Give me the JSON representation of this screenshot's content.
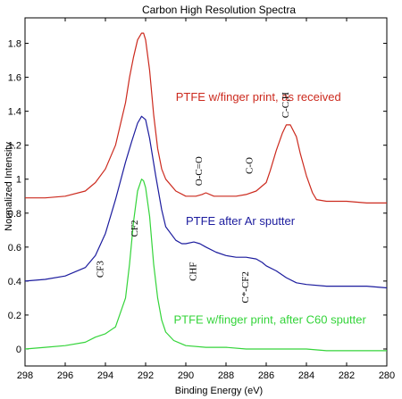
{
  "chart_data": {
    "type": "line",
    "title": "Carbon High Resolution Spectra",
    "xlabel": "Binding Energy (eV)",
    "ylabel": "Normalized Intensity",
    "xlim": [
      298,
      280
    ],
    "ylim": [
      -0.1,
      1.95
    ],
    "x_ticks": [
      298,
      296,
      294,
      292,
      290,
      288,
      286,
      284,
      282,
      280
    ],
    "y_ticks": [
      0,
      0.2,
      0.4,
      0.6,
      0.8,
      1,
      1.2,
      1.4,
      1.6,
      1.8
    ],
    "x_tick_labels": [
      "298",
      "296",
      "294",
      "292",
      "290",
      "288",
      "286",
      "284",
      "282",
      "280"
    ],
    "y_tick_labels": [
      "0",
      "0.2",
      "0.4",
      "0.6",
      "0.8",
      "1",
      "1.2",
      "1.4",
      "1.6",
      "1.8"
    ],
    "grid": false,
    "series": [
      {
        "name": "PTFE w/finger print, as received",
        "color": "#cc2a1e",
        "x": [
          298,
          297,
          296,
          295,
          294.5,
          294,
          293.5,
          293,
          292.8,
          292.6,
          292.4,
          292.2,
          292.1,
          292.0,
          291.8,
          291.6,
          291.4,
          291.2,
          291,
          290.5,
          290,
          289.5,
          289.2,
          289,
          288.6,
          288,
          287.5,
          287,
          286.5,
          286,
          285.8,
          285.5,
          285.2,
          285.0,
          284.8,
          284.5,
          284.3,
          284,
          283.7,
          283.5,
          283,
          282,
          281,
          280
        ],
        "y": [
          0.89,
          0.89,
          0.9,
          0.93,
          0.98,
          1.06,
          1.2,
          1.45,
          1.6,
          1.72,
          1.82,
          1.86,
          1.86,
          1.82,
          1.64,
          1.38,
          1.18,
          1.06,
          1.0,
          0.93,
          0.9,
          0.9,
          0.91,
          0.92,
          0.9,
          0.9,
          0.9,
          0.91,
          0.93,
          0.98,
          1.05,
          1.17,
          1.27,
          1.32,
          1.32,
          1.25,
          1.15,
          1.02,
          0.92,
          0.88,
          0.87,
          0.87,
          0.86,
          0.86
        ]
      },
      {
        "name": "PTFE after Ar sputter",
        "color": "#1c1c9e",
        "x": [
          298,
          297,
          296,
          295,
          294.5,
          294,
          293.5,
          293,
          292.7,
          292.4,
          292.2,
          292.0,
          291.8,
          291.5,
          291.2,
          291,
          290.5,
          290.2,
          290,
          289.6,
          289.3,
          289,
          288.5,
          288,
          287.5,
          287,
          286.5,
          286.2,
          286,
          285.5,
          285,
          284.5,
          284,
          283,
          282,
          281,
          280
        ],
        "y": [
          0.4,
          0.41,
          0.43,
          0.48,
          0.55,
          0.68,
          0.88,
          1.1,
          1.22,
          1.33,
          1.37,
          1.35,
          1.24,
          1.02,
          0.82,
          0.72,
          0.64,
          0.62,
          0.62,
          0.63,
          0.62,
          0.6,
          0.57,
          0.55,
          0.54,
          0.54,
          0.53,
          0.51,
          0.49,
          0.46,
          0.42,
          0.39,
          0.38,
          0.37,
          0.37,
          0.37,
          0.36
        ]
      },
      {
        "name": "PTFE w/finger print, after C60 sputter",
        "color": "#34d43a",
        "x": [
          298,
          297,
          296,
          295,
          294.5,
          294,
          293.5,
          293,
          292.8,
          292.6,
          292.4,
          292.2,
          292.1,
          292.0,
          291.8,
          291.6,
          291.4,
          291.2,
          291,
          290.6,
          290.2,
          290,
          289,
          288,
          287,
          286,
          285,
          284,
          283,
          282,
          281,
          280
        ],
        "y": [
          0.0,
          0.01,
          0.02,
          0.04,
          0.07,
          0.09,
          0.13,
          0.3,
          0.5,
          0.75,
          0.93,
          1.0,
          0.99,
          0.95,
          0.78,
          0.5,
          0.3,
          0.17,
          0.1,
          0.05,
          0.03,
          0.02,
          0.01,
          0.01,
          0.0,
          0.0,
          0.0,
          0.0,
          -0.01,
          -0.01,
          -0.01,
          -0.01
        ]
      }
    ],
    "legend_labels": [
      {
        "text": "PTFE w/finger print, as received",
        "color": "#cc2a1e",
        "x": 290.5,
        "y": 1.46
      },
      {
        "text": "PTFE after Ar sputter",
        "color": "#1c1c9e",
        "x": 290.0,
        "y": 0.73
      },
      {
        "text": "PTFE w/finger print, after C60 sputter",
        "color": "#34d43a",
        "x": 290.6,
        "y": 0.15
      }
    ],
    "annotations": [
      {
        "text": "O-C=O",
        "x": 289.2,
        "y": 0.96,
        "rotate": true
      },
      {
        "text": "C-O",
        "x": 286.7,
        "y": 1.03,
        "rotate": true
      },
      {
        "text": "C-C,H",
        "x": 284.9,
        "y": 1.36,
        "rotate": true
      },
      {
        "text": "CF2",
        "x": 292.4,
        "y": 0.66,
        "rotate": true
      },
      {
        "text": "CF3",
        "x": 294.1,
        "y": 0.42,
        "rotate": true
      },
      {
        "text": "CHF",
        "x": 289.5,
        "y": 0.4,
        "rotate": true
      },
      {
        "text": "C*-CF2",
        "x": 286.9,
        "y": 0.27,
        "rotate": true
      }
    ]
  }
}
